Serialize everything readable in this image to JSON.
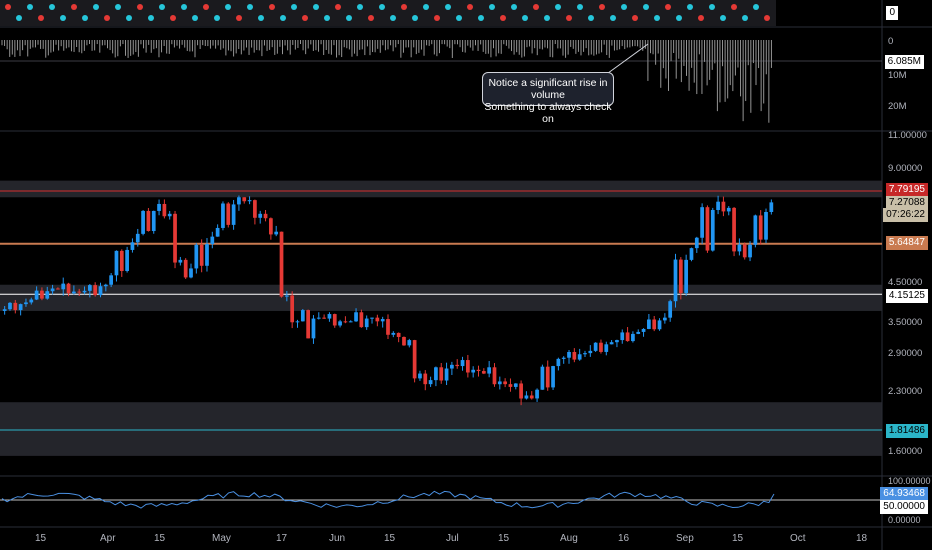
{
  "colors": {
    "background": "#000000",
    "up": "#2196f3",
    "down": "#e53935",
    "resistance_red": "#d32f2f",
    "support_orange": "#c97a50",
    "support_white": "#ffffff",
    "cyan_line": "#2bb5c8",
    "rsi_line": "#4a90e2",
    "zone_gray": "#2a2c33"
  },
  "top_indicator": {
    "label": "0"
  },
  "volume_panel": {
    "axis_labels": [
      "0",
      "6.085M",
      "10M",
      "20M"
    ],
    "annotation_line1": "Notice a significant rise in volume",
    "annotation_line2": "Something to always check on"
  },
  "price_axis": {
    "labels": [
      "11.00000",
      "9.00000",
      "4.50000",
      "3.50000",
      "2.90000",
      "2.30000",
      "1.60000"
    ]
  },
  "price_tags": {
    "resistance": "7.79195",
    "last_price": "7.27088",
    "countdown": "07:26:22",
    "support_upper": "5.64847",
    "support_lower": "4.15125",
    "cyan_level": "1.81486"
  },
  "rsi_panel": {
    "labels": [
      "100.00000",
      "0.00000"
    ],
    "value": "64.93468",
    "midline": "50.00000"
  },
  "time_axis": {
    "labels": [
      "15",
      "Apr",
      "15",
      "May",
      "17",
      "Jun",
      "15",
      "Jul",
      "15",
      "Aug",
      "16",
      "Sep",
      "15",
      "Oct",
      "18"
    ]
  },
  "chart_data": {
    "type": "candlestick",
    "title": "",
    "series": [
      {
        "x": "Mar 08",
        "open": 3.75,
        "high": 4.05,
        "low": 3.65,
        "close": 3.95
      },
      {
        "x": "Mar 15",
        "open": 3.95,
        "high": 4.4,
        "low": 3.9,
        "close": 4.3
      },
      {
        "x": "Mar 22",
        "open": 4.3,
        "high": 4.6,
        "low": 4.1,
        "close": 4.2
      },
      {
        "x": "Mar 29",
        "open": 4.2,
        "high": 4.5,
        "low": 3.9,
        "close": 4.4
      },
      {
        "x": "Apr 05",
        "open": 4.4,
        "high": 5.9,
        "low": 4.3,
        "close": 5.7
      },
      {
        "x": "Apr 12",
        "open": 5.7,
        "high": 7.5,
        "low": 5.5,
        "close": 7.2
      },
      {
        "x": "Apr 19",
        "open": 7.2,
        "high": 7.4,
        "low": 4.3,
        "close": 4.6
      },
      {
        "x": "Apr 26",
        "open": 4.6,
        "high": 6.1,
        "low": 4.4,
        "close": 5.9
      },
      {
        "x": "May 03",
        "open": 5.9,
        "high": 7.9,
        "low": 5.7,
        "close": 7.5
      },
      {
        "x": "May 10",
        "open": 7.5,
        "high": 7.6,
        "low": 6.2,
        "close": 6.6
      },
      {
        "x": "May 17",
        "open": 6.6,
        "high": 6.8,
        "low": 3.3,
        "close": 3.5
      },
      {
        "x": "May 24",
        "open": 3.5,
        "high": 4.0,
        "low": 2.7,
        "close": 3.6
      },
      {
        "x": "May 31",
        "open": 3.6,
        "high": 3.8,
        "low": 3.3,
        "close": 3.5
      },
      {
        "x": "Jun 07",
        "open": 3.5,
        "high": 3.9,
        "low": 3.2,
        "close": 3.6
      },
      {
        "x": "Jun 14",
        "open": 3.6,
        "high": 3.7,
        "low": 3.1,
        "close": 3.2
      },
      {
        "x": "Jun 21",
        "open": 3.2,
        "high": 3.4,
        "low": 2.2,
        "close": 2.4
      },
      {
        "x": "Jun 28",
        "open": 2.4,
        "high": 2.8,
        "low": 2.3,
        "close": 2.7
      },
      {
        "x": "Jul 05",
        "open": 2.7,
        "high": 2.9,
        "low": 2.5,
        "close": 2.6
      },
      {
        "x": "Jul 12",
        "open": 2.6,
        "high": 2.8,
        "low": 2.3,
        "close": 2.4
      },
      {
        "x": "Jul 19",
        "open": 2.4,
        "high": 2.5,
        "low": 2.1,
        "close": 2.2
      },
      {
        "x": "Jul 26",
        "open": 2.2,
        "high": 2.9,
        "low": 2.1,
        "close": 2.8
      },
      {
        "x": "Aug 02",
        "open": 2.8,
        "high": 3.0,
        "low": 2.7,
        "close": 2.9
      },
      {
        "x": "Aug 09",
        "open": 2.9,
        "high": 3.2,
        "low": 2.8,
        "close": 3.1
      },
      {
        "x": "Aug 16",
        "open": 3.1,
        "high": 3.4,
        "low": 3.0,
        "close": 3.3
      },
      {
        "x": "Aug 23",
        "open": 3.3,
        "high": 3.7,
        "low": 3.2,
        "close": 3.6
      },
      {
        "x": "Aug 30",
        "open": 3.6,
        "high": 5.9,
        "low": 3.5,
        "close": 5.5
      },
      {
        "x": "Sep 06",
        "open": 5.5,
        "high": 7.9,
        "low": 4.0,
        "close": 7.3
      },
      {
        "x": "Sep 13",
        "open": 7.3,
        "high": 7.6,
        "low": 4.6,
        "close": 5.2
      },
      {
        "x": "Sep 20",
        "open": 5.2,
        "high": 7.4,
        "low": 5.0,
        "close": 7.27
      }
    ],
    "levels": [
      7.79195,
      5.64847,
      4.15125,
      1.81486
    ],
    "zones": [
      [
        7.5,
        8.3
      ],
      [
        3.75,
        4.4
      ],
      [
        1.55,
        2.15
      ]
    ],
    "last_price": 7.27088,
    "rsi_last": 64.93468,
    "rsi_range": [
      0,
      100
    ],
    "rsi_midline": 50,
    "volume_max_label": "20M",
    "legend": "none",
    "grid": false
  }
}
